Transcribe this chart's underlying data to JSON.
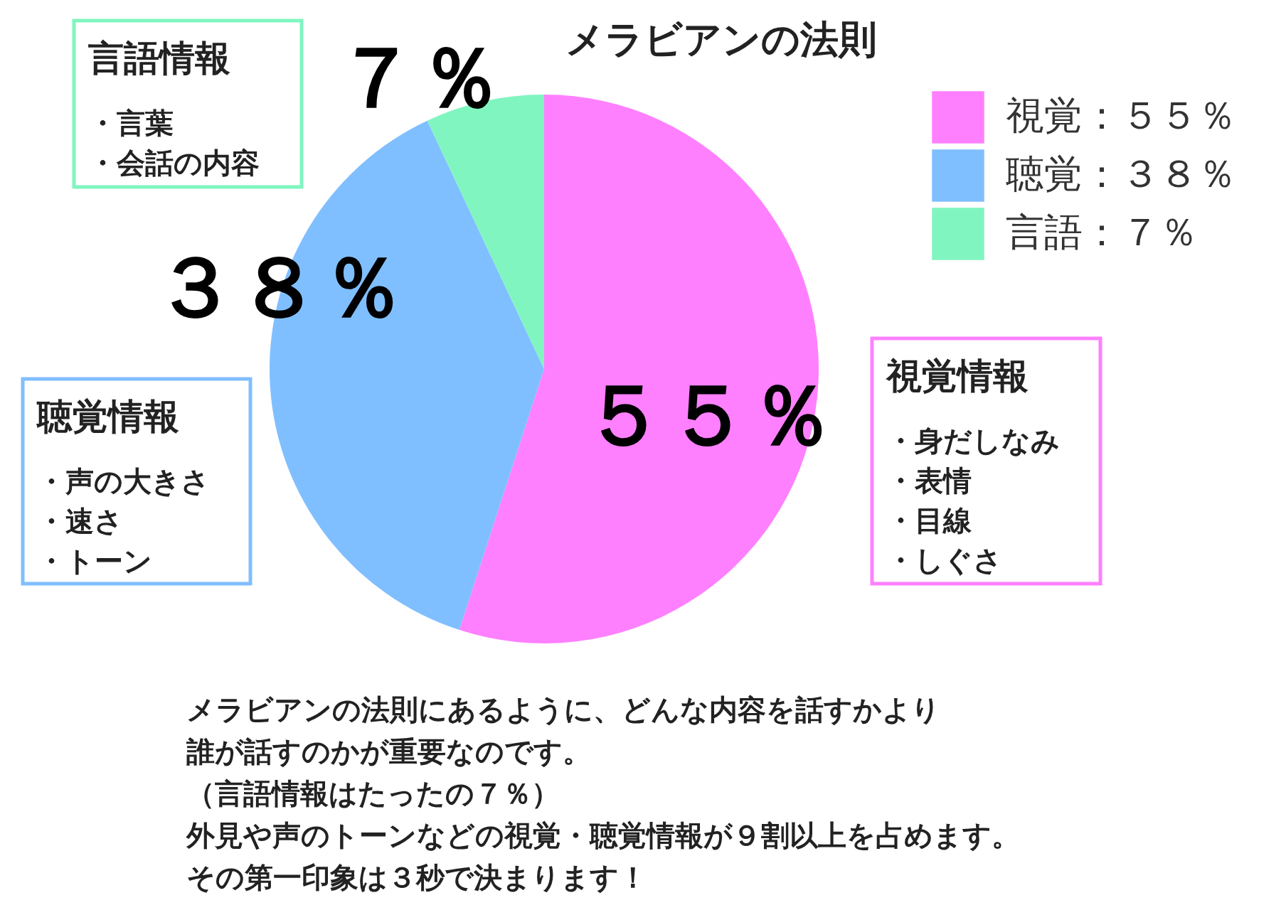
{
  "chart_data": {
    "type": "pie",
    "title": "メラビアンの法則",
    "categories": [
      "視覚：５５％",
      "聴覚：３８％",
      "言語：７％"
    ],
    "values": [
      55,
      38,
      7
    ],
    "colors": [
      "#ff80ff",
      "#80bfff",
      "#80f5c0"
    ],
    "value_labels": [
      "５５％",
      "３８％",
      "７％"
    ],
    "legend": "top right",
    "annotations": [
      "視覚情報",
      "・身だしなみ",
      "・表情",
      "・目線",
      "・しぐさ",
      "聴覚情報",
      "・声の大きさ",
      "・速さ",
      "・トーン",
      "言語情報",
      "・言葉",
      "・会話の内容",
      "メラビアンの法則にあるように、どんな内容を話すかより",
      "誰が話すのかが重要なのです。",
      "（言語情報はたったの７％）",
      "外見や声のトーンなどの視覚・聴覚情報が９割以上を占めます。",
      "その第一印象は３秒で決まります！"
    ]
  }
}
